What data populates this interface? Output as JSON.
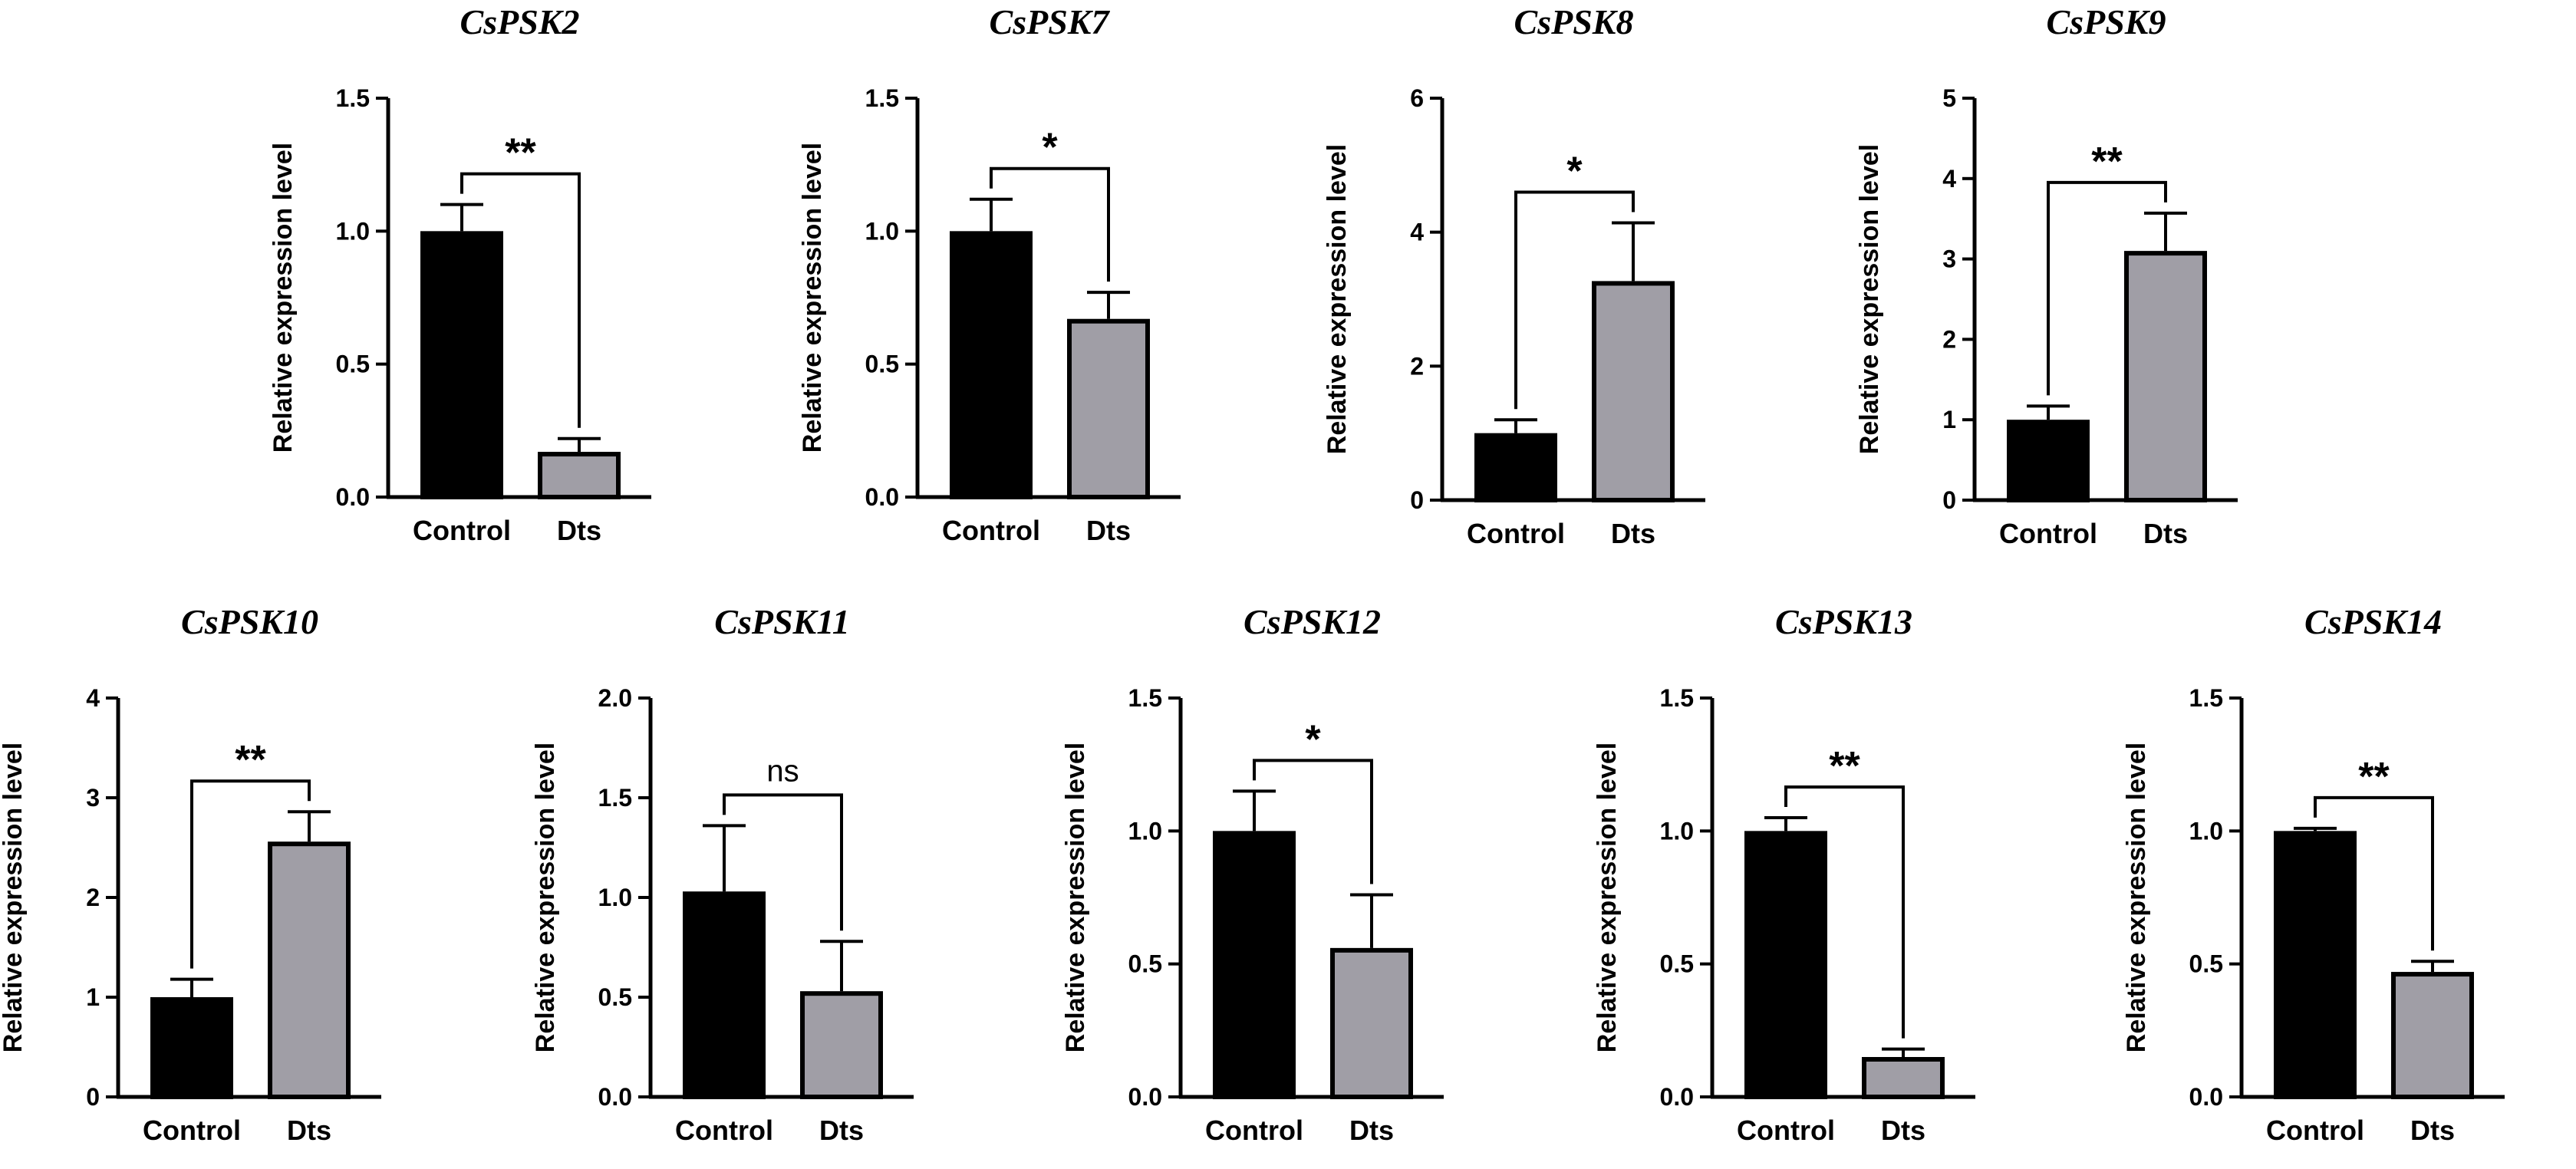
{
  "chart_data": [
    {
      "type": "bar",
      "title": "CsPSK2",
      "ylabel": "Relative expression level",
      "categories": [
        "Control",
        "Dts"
      ],
      "values": [
        1.0,
        0.17
      ],
      "errors": [
        0.1,
        0.05
      ],
      "colors": [
        "#000000",
        "#a09ea6"
      ],
      "ylim": [
        0,
        1.5
      ],
      "yticks": [
        "0.0",
        "0.5",
        "1.0",
        "1.5"
      ],
      "significance": "**"
    },
    {
      "type": "bar",
      "title": "CsPSK7",
      "ylabel": "Relative expression level",
      "categories": [
        "Control",
        "Dts"
      ],
      "values": [
        1.0,
        0.67
      ],
      "errors": [
        0.12,
        0.1
      ],
      "colors": [
        "#000000",
        "#a09ea6"
      ],
      "ylim": [
        0,
        1.5
      ],
      "yticks": [
        "0.0",
        "0.5",
        "1.0",
        "1.5"
      ],
      "significance": "*"
    },
    {
      "type": "bar",
      "title": "CsPSK8",
      "ylabel": "Relative expression level",
      "categories": [
        "Control",
        "Dts"
      ],
      "values": [
        1.0,
        3.27
      ],
      "errors": [
        0.2,
        0.87
      ],
      "colors": [
        "#000000",
        "#a09ea6"
      ],
      "ylim": [
        0,
        6
      ],
      "yticks": [
        "0",
        "2",
        "4",
        "6"
      ],
      "significance": "*"
    },
    {
      "type": "bar",
      "title": "CsPSK9",
      "ylabel": "Relative expression level",
      "categories": [
        "Control",
        "Dts"
      ],
      "values": [
        1.0,
        3.1
      ],
      "errors": [
        0.17,
        0.47
      ],
      "colors": [
        "#000000",
        "#a09ea6"
      ],
      "ylim": [
        0,
        5
      ],
      "yticks": [
        "0",
        "1",
        "2",
        "3",
        "4",
        "5"
      ],
      "significance": "**"
    },
    {
      "type": "bar",
      "title": "CsPSK10",
      "ylabel": "Relative expression level",
      "categories": [
        "Control",
        "Dts"
      ],
      "values": [
        1.0,
        2.56
      ],
      "errors": [
        0.18,
        0.3
      ],
      "colors": [
        "#000000",
        "#a09ea6"
      ],
      "ylim": [
        0,
        4
      ],
      "yticks": [
        "0",
        "1",
        "2",
        "3",
        "4"
      ],
      "significance": "**"
    },
    {
      "type": "bar",
      "title": "CsPSK11",
      "ylabel": "Relative expression level",
      "categories": [
        "Control",
        "Dts"
      ],
      "values": [
        1.03,
        0.53
      ],
      "errors": [
        0.33,
        0.25
      ],
      "colors": [
        "#000000",
        "#a09ea6"
      ],
      "ylim": [
        0,
        2.0
      ],
      "yticks": [
        "0.0",
        "0.5",
        "1.0",
        "1.5",
        "2.0"
      ],
      "significance": "ns"
    },
    {
      "type": "bar",
      "title": "CsPSK12",
      "ylabel": "Relative expression level",
      "categories": [
        "Control",
        "Dts"
      ],
      "values": [
        1.0,
        0.56
      ],
      "errors": [
        0.15,
        0.2
      ],
      "colors": [
        "#000000",
        "#a09ea6"
      ],
      "ylim": [
        0,
        1.5
      ],
      "yticks": [
        "0.0",
        "0.5",
        "1.0",
        "1.5"
      ],
      "significance": "*"
    },
    {
      "type": "bar",
      "title": "CsPSK13",
      "ylabel": "Relative expression level",
      "categories": [
        "Control",
        "Dts"
      ],
      "values": [
        1.0,
        0.15
      ],
      "errors": [
        0.05,
        0.03
      ],
      "colors": [
        "#000000",
        "#a09ea6"
      ],
      "ylim": [
        0,
        1.5
      ],
      "yticks": [
        "0.0",
        "0.5",
        "1.0",
        "1.5"
      ],
      "significance": "**"
    },
    {
      "type": "bar",
      "title": "CsPSK14",
      "ylabel": "Relative expression level",
      "categories": [
        "Control",
        "Dts"
      ],
      "values": [
        1.0,
        0.47
      ],
      "errors": [
        0.01,
        0.04
      ],
      "colors": [
        "#000000",
        "#a09ea6"
      ],
      "ylim": [
        0,
        1.5
      ],
      "yticks": [
        "0.0",
        "0.5",
        "1.0",
        "1.5"
      ],
      "significance": "**"
    }
  ]
}
